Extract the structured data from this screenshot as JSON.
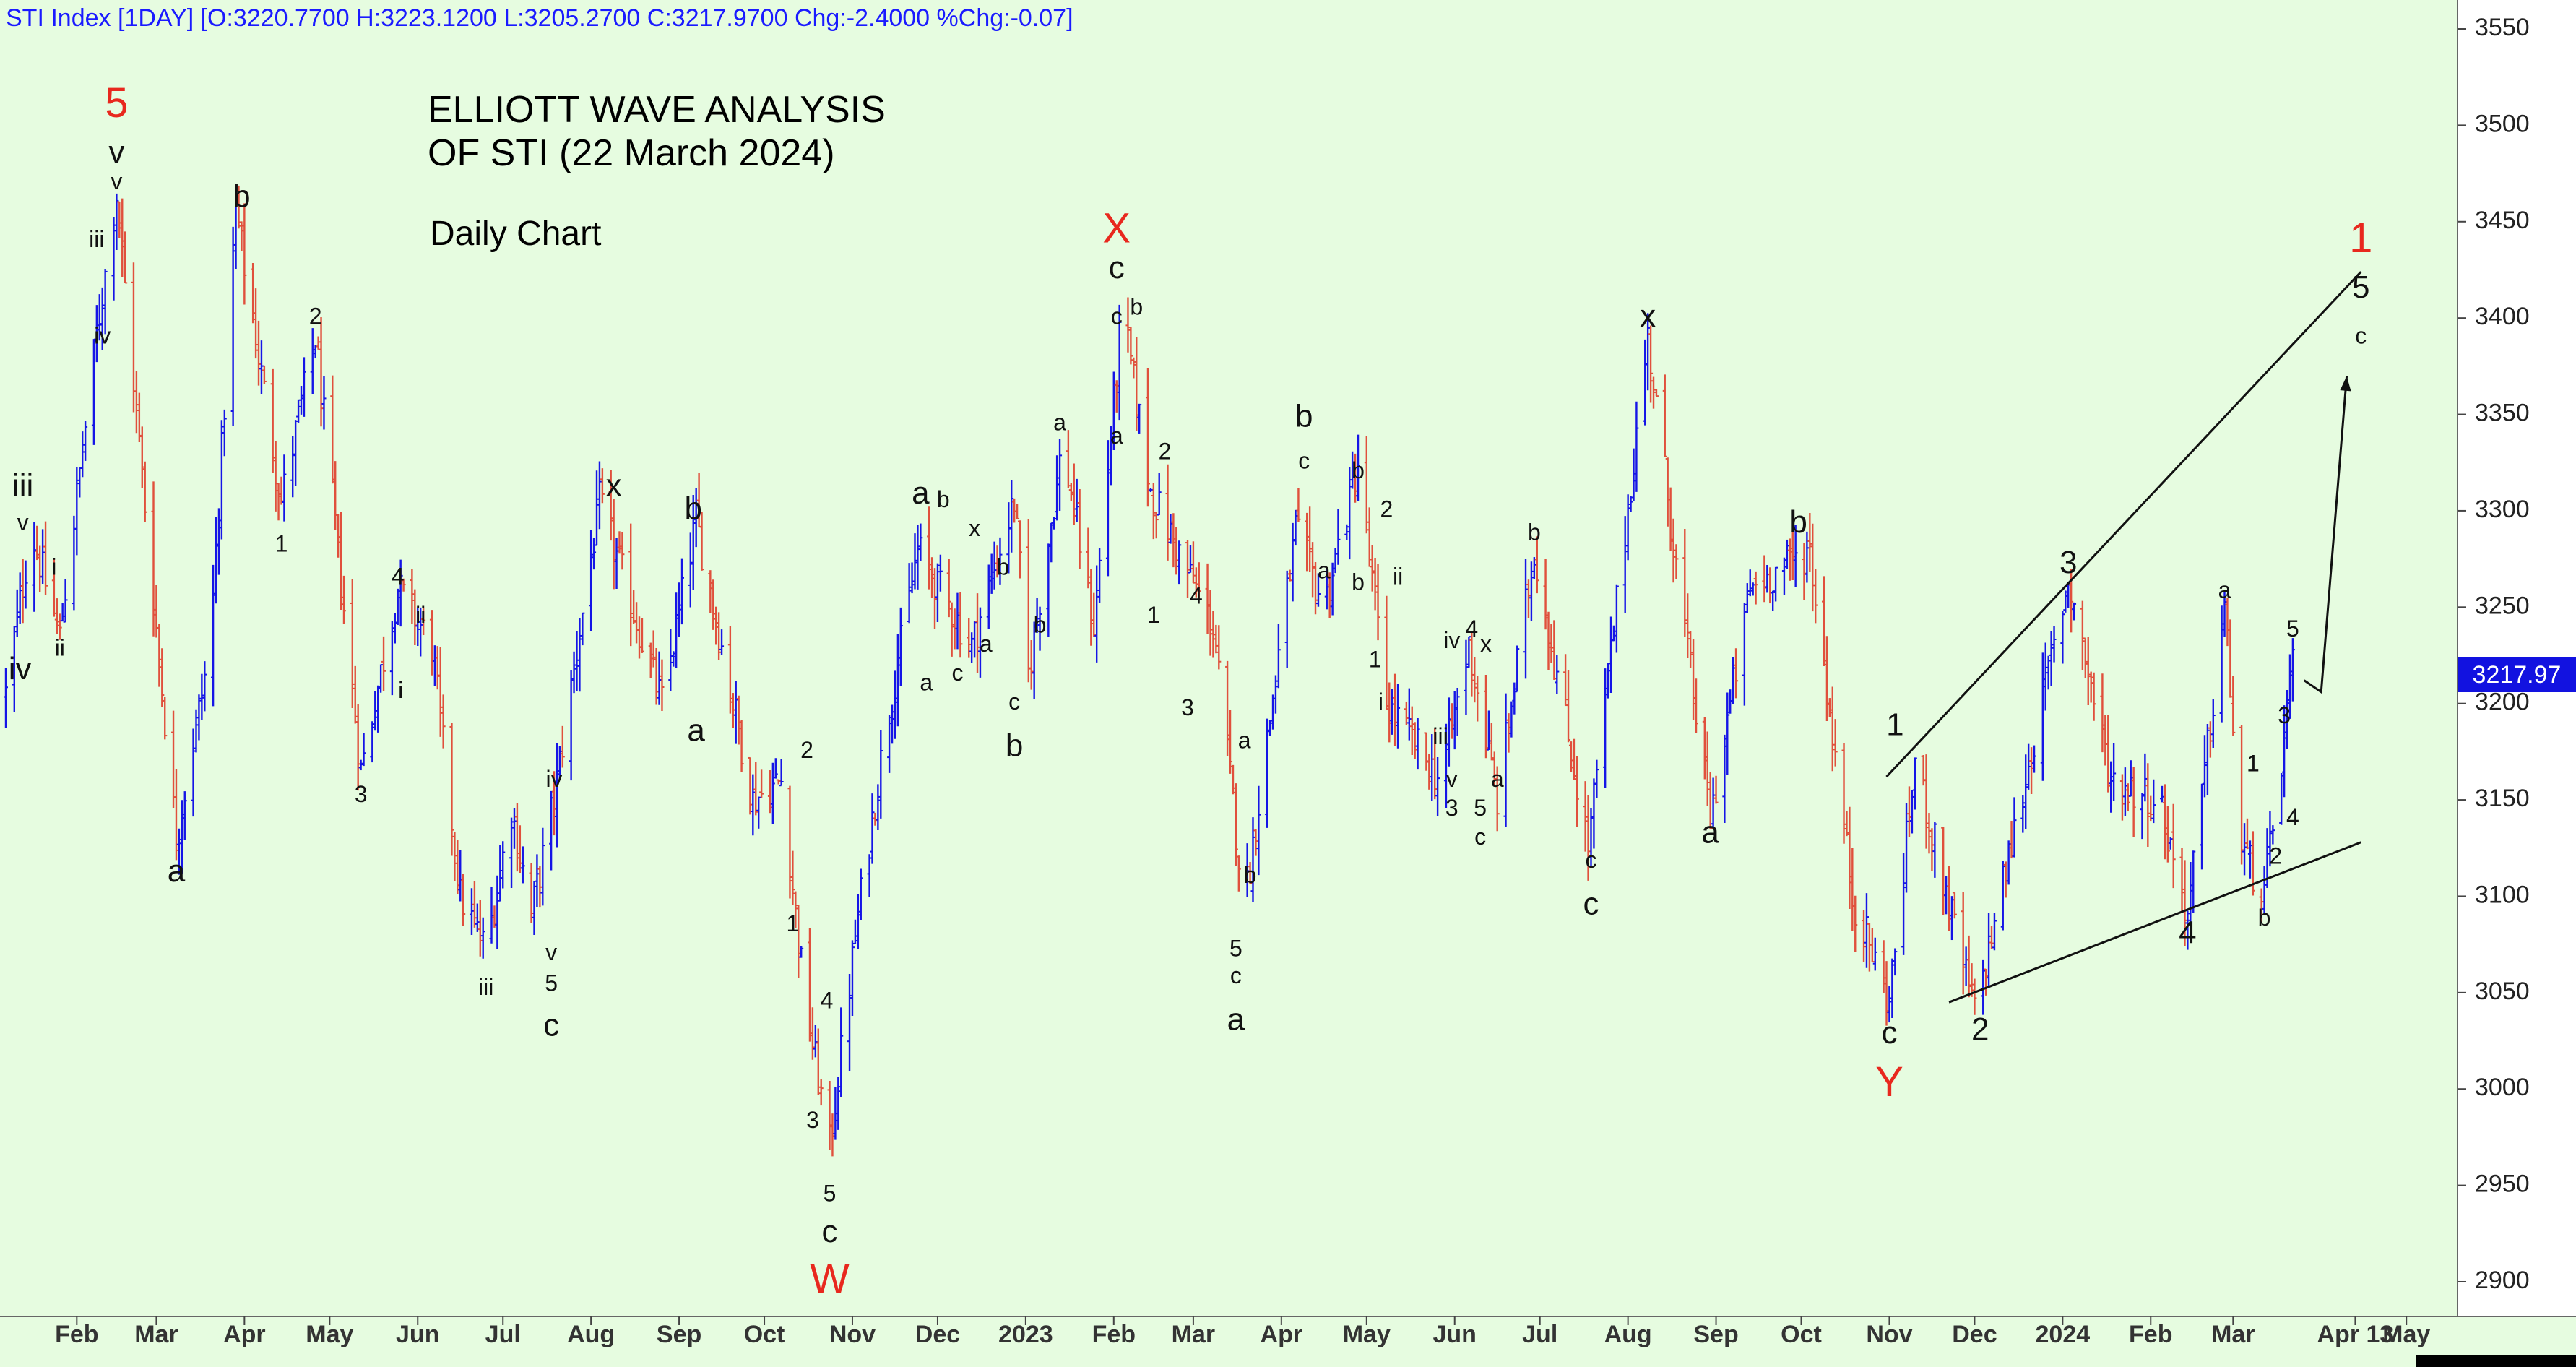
{
  "header": {
    "ohlc_line": "STI Index [1DAY] [O:3220.7700 H:3223.1200 L:3205.2700 C:3217.9700 Chg:-2.4000 %Chg:-0.07]"
  },
  "title": {
    "line1": "ELLIOTT WAVE ANALYSIS",
    "line2": "OF STI (22 March 2024)",
    "subtitle": "Daily Chart"
  },
  "last_price_tag": "3217.97",
  "colors": {
    "background": "#e6fce0",
    "up_bar": "#1515e6",
    "down_bar": "#e0503c",
    "wave_red": "#e8281e",
    "label_black": "#111111",
    "price_tag_bg": "#1212e0"
  },
  "chart_data": {
    "type": "ohlc",
    "y_axis": {
      "ticks": [
        3550,
        3500,
        3450,
        3400,
        3350,
        3300,
        3250,
        3200,
        3150,
        3100,
        3050,
        3000,
        2950,
        2900
      ],
      "ylim": [
        2882,
        3565
      ],
      "side": "right"
    },
    "x_axis": {
      "tick_labels": [
        "Feb",
        "Mar",
        "Apr",
        "May",
        "Jun",
        "Jul",
        "Aug",
        "Sep",
        "Oct",
        "Nov",
        "Dec",
        "2023",
        "Feb",
        "Mar",
        "Apr",
        "May",
        "Jun",
        "Jul",
        "Aug",
        "Sep",
        "Oct",
        "Nov",
        "Dec",
        "2024",
        "Feb",
        "Mar",
        "Apr 13",
        "May"
      ],
      "range": [
        "2022-01-07",
        "2024-05-19"
      ]
    },
    "last_close": 3217.97,
    "price_path": [
      [
        "2022-01-07",
        3205
      ],
      [
        "2022-01-16",
        3290
      ],
      [
        "2022-01-26",
        3235
      ],
      [
        "2022-02-07",
        3380
      ],
      [
        "2022-02-15",
        3465
      ],
      [
        "2022-02-27",
        3270
      ],
      [
        "2022-03-08",
        3130
      ],
      [
        "2022-03-20",
        3230
      ],
      [
        "2022-03-29",
        3455
      ],
      [
        "2022-04-14",
        3305
      ],
      [
        "2022-04-26",
        3390
      ],
      [
        "2022-05-12",
        3165
      ],
      [
        "2022-05-25",
        3260
      ],
      [
        "2022-06-06",
        3230
      ],
      [
        "2022-06-16",
        3100
      ],
      [
        "2022-06-25",
        3072
      ],
      [
        "2022-07-04",
        3145
      ],
      [
        "2022-07-11",
        3090
      ],
      [
        "2022-07-19",
        3150
      ],
      [
        "2022-08-04",
        3305
      ],
      [
        "2022-08-26",
        3200
      ],
      [
        "2022-09-07",
        3295
      ],
      [
        "2022-09-27",
        3150
      ],
      [
        "2022-10-07",
        3160
      ],
      [
        "2022-10-15",
        3050
      ],
      [
        "2022-10-24",
        2970
      ],
      [
        "2022-11-03",
        3090
      ],
      [
        "2022-11-12",
        3180
      ],
      [
        "2022-11-24",
        3280
      ],
      [
        "2022-12-13",
        3230
      ],
      [
        "2022-12-28",
        3305
      ],
      [
        "2023-01-02",
        3215
      ],
      [
        "2023-01-14",
        3335
      ],
      [
        "2023-01-25",
        3240
      ],
      [
        "2023-02-04",
        3405
      ],
      [
        "2023-02-14",
        3310
      ],
      [
        "2023-03-08",
        3240
      ],
      [
        "2023-03-19",
        3095
      ],
      [
        "2023-04-06",
        3290
      ],
      [
        "2023-04-16",
        3250
      ],
      [
        "2023-04-28",
        3325
      ],
      [
        "2023-05-08",
        3200
      ],
      [
        "2023-05-27",
        3160
      ],
      [
        "2023-06-06",
        3230
      ],
      [
        "2023-06-16",
        3150
      ],
      [
        "2023-06-29",
        3280
      ],
      [
        "2023-07-18",
        3125
      ],
      [
        "2023-08-08",
        3390
      ],
      [
        "2023-08-19",
        3260
      ],
      [
        "2023-08-30",
        3140
      ],
      [
        "2023-09-13",
        3260
      ],
      [
        "2023-10-04",
        3280
      ],
      [
        "2023-10-19",
        3100
      ],
      [
        "2023-11-01",
        3045
      ],
      [
        "2023-11-10",
        3170
      ],
      [
        "2023-12-01",
        3040
      ],
      [
        "2023-12-16",
        3140
      ],
      [
        "2024-01-03",
        3265
      ],
      [
        "2024-01-18",
        3160
      ],
      [
        "2024-02-04",
        3150
      ],
      [
        "2024-02-14",
        3090
      ],
      [
        "2024-02-27",
        3250
      ],
      [
        "2024-03-04",
        3125
      ],
      [
        "2024-03-12",
        3100
      ],
      [
        "2024-03-22",
        3218
      ]
    ],
    "overlays": [
      {
        "kind": "upper_trendline",
        "from": [
          "2023-10-31",
          3162
        ],
        "to": [
          "2024-04-15",
          3424
        ]
      },
      {
        "kind": "lower_trendline",
        "from": [
          "2023-11-22",
          3045
        ],
        "to": [
          "2024-04-15",
          3128
        ]
      },
      {
        "kind": "projection_arrow",
        "points": [
          [
            "2024-03-26",
            3212
          ],
          [
            "2024-04-01",
            3206
          ],
          [
            "2024-04-10",
            3370
          ]
        ]
      }
    ],
    "wave_labels": [
      {
        "text": "5",
        "date": "2022-02-15",
        "price": 3510,
        "color": "red",
        "size": "large"
      },
      {
        "text": "v",
        "date": "2022-02-15",
        "price": 3485,
        "color": "black",
        "size": "medium"
      },
      {
        "text": "v",
        "date": "2022-02-15",
        "price": 3470,
        "color": "black",
        "size": "small"
      },
      {
        "text": "iii",
        "date": "2022-02-08",
        "price": 3440,
        "color": "black",
        "size": "small"
      },
      {
        "text": "iv",
        "date": "2022-02-10",
        "price": 3390,
        "color": "black",
        "size": "small"
      },
      {
        "text": "iii",
        "date": "2022-01-13",
        "price": 3312,
        "color": "black",
        "size": "medium"
      },
      {
        "text": "v",
        "date": "2022-01-13",
        "price": 3293,
        "color": "black",
        "size": "small"
      },
      {
        "text": "i",
        "date": "2022-01-24",
        "price": 3270,
        "color": "black",
        "size": "small"
      },
      {
        "text": "iv",
        "date": "2022-01-12",
        "price": 3217,
        "color": "black",
        "size": "medium"
      },
      {
        "text": "ii",
        "date": "2022-01-26",
        "price": 3228,
        "color": "black",
        "size": "small"
      },
      {
        "text": "a",
        "date": "2022-03-08",
        "price": 3112,
        "color": "black",
        "size": "medium"
      },
      {
        "text": "b",
        "date": "2022-03-31",
        "price": 3462,
        "color": "black",
        "size": "medium"
      },
      {
        "text": "1",
        "date": "2022-04-14",
        "price": 3282,
        "color": "black",
        "size": "small"
      },
      {
        "text": "2",
        "date": "2022-04-26",
        "price": 3400,
        "color": "black",
        "size": "small"
      },
      {
        "text": "4",
        "date": "2022-05-25",
        "price": 3265,
        "color": "black",
        "size": "small"
      },
      {
        "text": "ii",
        "date": "2022-06-02",
        "price": 3245,
        "color": "black",
        "size": "small"
      },
      {
        "text": "i",
        "date": "2022-05-26",
        "price": 3206,
        "color": "black",
        "size": "small"
      },
      {
        "text": "3",
        "date": "2022-05-12",
        "price": 3152,
        "color": "black",
        "size": "small"
      },
      {
        "text": "iv",
        "date": "2022-07-19",
        "price": 3160,
        "color": "black",
        "size": "small"
      },
      {
        "text": "iii",
        "date": "2022-06-25",
        "price": 3052,
        "color": "black",
        "size": "small"
      },
      {
        "text": "v",
        "date": "2022-07-18",
        "price": 3070,
        "color": "black",
        "size": "small"
      },
      {
        "text": "5",
        "date": "2022-07-18",
        "price": 3054,
        "color": "black",
        "size": "small"
      },
      {
        "text": "c",
        "date": "2022-07-18",
        "price": 3032,
        "color": "black",
        "size": "medium"
      },
      {
        "text": "x",
        "date": "2022-08-09",
        "price": 3312,
        "color": "black",
        "size": "medium"
      },
      {
        "text": "b",
        "date": "2022-09-06",
        "price": 3300,
        "color": "black",
        "size": "medium"
      },
      {
        "text": "a",
        "date": "2022-09-07",
        "price": 3185,
        "color": "black",
        "size": "medium"
      },
      {
        "text": "2",
        "date": "2022-10-16",
        "price": 3175,
        "color": "black",
        "size": "small"
      },
      {
        "text": "1",
        "date": "2022-10-11",
        "price": 3085,
        "color": "black",
        "size": "small"
      },
      {
        "text": "4",
        "date": "2022-10-23",
        "price": 3045,
        "color": "black",
        "size": "small"
      },
      {
        "text": "3",
        "date": "2022-10-18",
        "price": 2983,
        "color": "black",
        "size": "small"
      },
      {
        "text": "5",
        "date": "2022-10-24",
        "price": 2945,
        "color": "black",
        "size": "small"
      },
      {
        "text": "c",
        "date": "2022-10-24",
        "price": 2925,
        "color": "black",
        "size": "medium"
      },
      {
        "text": "W",
        "date": "2022-10-24",
        "price": 2900,
        "color": "red",
        "size": "large"
      },
      {
        "text": "a",
        "date": "2022-11-25",
        "price": 3308,
        "color": "black",
        "size": "medium"
      },
      {
        "text": "b",
        "date": "2022-12-03",
        "price": 3305,
        "color": "black",
        "size": "small"
      },
      {
        "text": "x",
        "date": "2022-12-14",
        "price": 3290,
        "color": "black",
        "size": "small"
      },
      {
        "text": "b",
        "date": "2022-12-24",
        "price": 3270,
        "color": "black",
        "size": "small"
      },
      {
        "text": "a",
        "date": "2022-11-27",
        "price": 3210,
        "color": "black",
        "size": "small"
      },
      {
        "text": "c",
        "date": "2022-12-08",
        "price": 3215,
        "color": "black",
        "size": "small"
      },
      {
        "text": "a",
        "date": "2022-12-18",
        "price": 3230,
        "color": "black",
        "size": "small"
      },
      {
        "text": "c",
        "date": "2022-12-28",
        "price": 3200,
        "color": "black",
        "size": "small"
      },
      {
        "text": "b",
        "date": "2022-12-28",
        "price": 3177,
        "color": "black",
        "size": "medium"
      },
      {
        "text": "b",
        "date": "2023-01-06",
        "price": 3240,
        "color": "black",
        "size": "small"
      },
      {
        "text": "a",
        "date": "2023-01-13",
        "price": 3345,
        "color": "black",
        "size": "small"
      },
      {
        "text": "X",
        "date": "2023-02-02",
        "price": 3445,
        "color": "red",
        "size": "large"
      },
      {
        "text": "c",
        "date": "2023-02-02",
        "price": 3425,
        "color": "black",
        "size": "medium"
      },
      {
        "text": "c",
        "date": "2023-02-02",
        "price": 3400,
        "color": "black",
        "size": "small"
      },
      {
        "text": "b",
        "date": "2023-02-09",
        "price": 3405,
        "color": "black",
        "size": "small"
      },
      {
        "text": "a",
        "date": "2023-02-02",
        "price": 3338,
        "color": "black",
        "size": "small"
      },
      {
        "text": "2",
        "date": "2023-02-19",
        "price": 3330,
        "color": "black",
        "size": "small"
      },
      {
        "text": "1",
        "date": "2023-02-15",
        "price": 3245,
        "color": "black",
        "size": "small"
      },
      {
        "text": "4",
        "date": "2023-03-02",
        "price": 3255,
        "color": "black",
        "size": "small"
      },
      {
        "text": "3",
        "date": "2023-02-27",
        "price": 3197,
        "color": "black",
        "size": "small"
      },
      {
        "text": "a",
        "date": "2023-03-19",
        "price": 3180,
        "color": "black",
        "size": "small"
      },
      {
        "text": "b",
        "date": "2023-03-21",
        "price": 3110,
        "color": "black",
        "size": "small"
      },
      {
        "text": "5",
        "date": "2023-03-16",
        "price": 3072,
        "color": "black",
        "size": "small"
      },
      {
        "text": "c",
        "date": "2023-03-16",
        "price": 3058,
        "color": "black",
        "size": "small"
      },
      {
        "text": "a",
        "date": "2023-03-16",
        "price": 3035,
        "color": "black",
        "size": "medium"
      },
      {
        "text": "b",
        "date": "2023-04-09",
        "price": 3348,
        "color": "black",
        "size": "medium"
      },
      {
        "text": "c",
        "date": "2023-04-09",
        "price": 3325,
        "color": "black",
        "size": "small"
      },
      {
        "text": "b",
        "date": "2023-04-28",
        "price": 3320,
        "color": "black",
        "size": "small"
      },
      {
        "text": "2",
        "date": "2023-05-08",
        "price": 3300,
        "color": "black",
        "size": "small"
      },
      {
        "text": "a",
        "date": "2023-04-16",
        "price": 3268,
        "color": "black",
        "size": "small"
      },
      {
        "text": "b",
        "date": "2023-04-28",
        "price": 3262,
        "color": "black",
        "size": "small"
      },
      {
        "text": "ii",
        "date": "2023-05-12",
        "price": 3265,
        "color": "black",
        "size": "small"
      },
      {
        "text": "1",
        "date": "2023-05-04",
        "price": 3222,
        "color": "black",
        "size": "small"
      },
      {
        "text": "i",
        "date": "2023-05-06",
        "price": 3200,
        "color": "black",
        "size": "small"
      },
      {
        "text": "iv",
        "date": "2023-05-31",
        "price": 3232,
        "color": "black",
        "size": "small"
      },
      {
        "text": "4",
        "date": "2023-06-07",
        "price": 3238,
        "color": "black",
        "size": "small"
      },
      {
        "text": "x",
        "date": "2023-06-12",
        "price": 3230,
        "color": "black",
        "size": "small"
      },
      {
        "text": "iii",
        "date": "2023-05-27",
        "price": 3182,
        "color": "black",
        "size": "small"
      },
      {
        "text": "v",
        "date": "2023-05-31",
        "price": 3160,
        "color": "black",
        "size": "small"
      },
      {
        "text": "3",
        "date": "2023-05-31",
        "price": 3145,
        "color": "black",
        "size": "small"
      },
      {
        "text": "b",
        "date": "2023-06-29",
        "price": 3288,
        "color": "black",
        "size": "small"
      },
      {
        "text": "a",
        "date": "2023-06-16",
        "price": 3160,
        "color": "black",
        "size": "small"
      },
      {
        "text": "5",
        "date": "2023-06-10",
        "price": 3145,
        "color": "black",
        "size": "small"
      },
      {
        "text": "c",
        "date": "2023-06-10",
        "price": 3130,
        "color": "black",
        "size": "small"
      },
      {
        "text": "c",
        "date": "2023-07-19",
        "price": 3118,
        "color": "black",
        "size": "small"
      },
      {
        "text": "c",
        "date": "2023-07-19",
        "price": 3095,
        "color": "black",
        "size": "medium"
      },
      {
        "text": "x",
        "date": "2023-08-08",
        "price": 3400,
        "color": "black",
        "size": "medium"
      },
      {
        "text": "b",
        "date": "2023-09-30",
        "price": 3293,
        "color": "black",
        "size": "medium"
      },
      {
        "text": "a",
        "date": "2023-08-30",
        "price": 3132,
        "color": "black",
        "size": "medium"
      },
      {
        "text": "1",
        "date": "2023-11-03",
        "price": 3188,
        "color": "black",
        "size": "medium"
      },
      {
        "text": "c",
        "date": "2023-11-01",
        "price": 3028,
        "color": "black",
        "size": "medium"
      },
      {
        "text": "Y",
        "date": "2023-11-01",
        "price": 3002,
        "color": "red",
        "size": "large"
      },
      {
        "text": "2",
        "date": "2023-12-03",
        "price": 3030,
        "color": "black",
        "size": "medium"
      },
      {
        "text": "3",
        "date": "2024-01-03",
        "price": 3272,
        "color": "black",
        "size": "medium"
      },
      {
        "text": "4",
        "date": "2024-02-14",
        "price": 3080,
        "color": "black",
        "size": "medium"
      },
      {
        "text": "a",
        "date": "2024-02-27",
        "price": 3258,
        "color": "black",
        "size": "small"
      },
      {
        "text": "b",
        "date": "2024-03-12",
        "price": 3088,
        "color": "black",
        "size": "small"
      },
      {
        "text": "5",
        "date": "2024-03-22",
        "price": 3238,
        "color": "black",
        "size": "small"
      },
      {
        "text": "3",
        "date": "2024-03-19",
        "price": 3193,
        "color": "black",
        "size": "small"
      },
      {
        "text": "1",
        "date": "2024-03-08",
        "price": 3168,
        "color": "black",
        "size": "small"
      },
      {
        "text": "4",
        "date": "2024-03-22",
        "price": 3140,
        "color": "black",
        "size": "small"
      },
      {
        "text": "2",
        "date": "2024-03-16",
        "price": 3120,
        "color": "black",
        "size": "small"
      },
      {
        "text": "1",
        "date": "2024-04-15",
        "price": 3440,
        "color": "red",
        "size": "large"
      },
      {
        "text": "5",
        "date": "2024-04-15",
        "price": 3415,
        "color": "black",
        "size": "medium"
      },
      {
        "text": "c",
        "date": "2024-04-15",
        "price": 3390,
        "color": "black",
        "size": "small"
      }
    ]
  }
}
